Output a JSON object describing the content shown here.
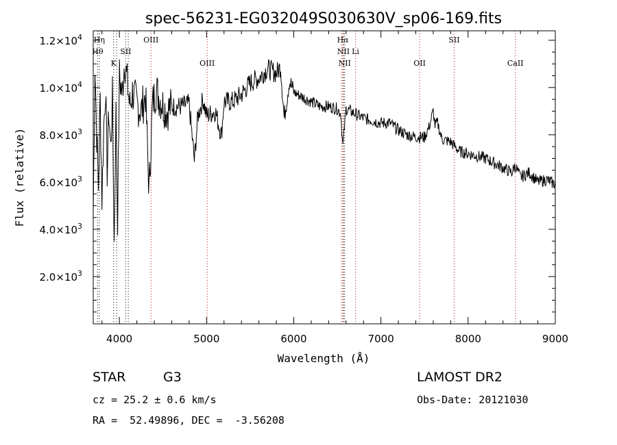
{
  "chart_data": {
    "type": "line",
    "title": "spec-56231-EG032049S030630V_sp06-169.fits",
    "xlabel": "Wavelength (Å)",
    "ylabel": "Flux (relative)",
    "xlim": [
      3700,
      9000
    ],
    "ylim": [
      0,
      12400
    ],
    "grid": false,
    "x_ticks": [
      4000,
      5000,
      6000,
      7000,
      8000,
      9000
    ],
    "x_tick_labels": [
      "4000",
      "5000",
      "6000",
      "7000",
      "8000",
      "9000"
    ],
    "y_ticks": [
      2000,
      4000,
      6000,
      8000,
      10000,
      12000
    ],
    "y_tick_mantissas": [
      "2.0",
      "4.0",
      "6.0",
      "8.0",
      "1.0",
      "1.2"
    ],
    "y_tick_exponents": [
      "3",
      "3",
      "3",
      "3",
      "4",
      "4"
    ],
    "y_tick_times": "×10",
    "series": [
      {
        "x": [
          3700,
          3720,
          3740,
          3760,
          3780,
          3800,
          3820,
          3840,
          3860,
          3880,
          3900,
          3920,
          3940,
          3960,
          3980,
          4000,
          4030,
          4060,
          4090,
          4120,
          4150,
          4200,
          4250,
          4300,
          4340,
          4380,
          4420,
          4480,
          4540,
          4600,
          4700,
          4800,
          4860,
          4900,
          4960,
          5000,
          5100,
          5170,
          5200,
          5300,
          5400,
          5500,
          5600,
          5700,
          5800,
          5850,
          5890,
          5950,
          6000,
          6100,
          6200,
          6300,
          6400,
          6500,
          6540,
          6563,
          6600,
          6700,
          6800,
          6900,
          7000,
          7100,
          7200,
          7300,
          7400,
          7500,
          7550,
          7600,
          7620,
          7650,
          7700,
          7800,
          7900,
          8000,
          8100,
          8200,
          8300,
          8400,
          8500,
          8540,
          8600,
          8700,
          8800,
          8900,
          9000
        ],
        "y": [
          4600,
          11000,
          8000,
          5800,
          9500,
          5300,
          8300,
          10000,
          6500,
          9000,
          7400,
          9600,
          3400,
          8900,
          4500,
          10500,
          9700,
          11200,
          10200,
          9200,
          9800,
          9300,
          9000,
          9700,
          5600,
          9300,
          9900,
          9400,
          9000,
          9200,
          9200,
          9300,
          6900,
          8800,
          9500,
          8800,
          9000,
          8000,
          9400,
          9400,
          9700,
          10200,
          10400,
          10800,
          10600,
          10900,
          8700,
          10300,
          9800,
          9600,
          9400,
          9200,
          9200,
          9100,
          8900,
          7500,
          9100,
          8900,
          8700,
          8600,
          8500,
          8500,
          8200,
          8000,
          7900,
          7900,
          8300,
          9000,
          8400,
          8500,
          7800,
          7700,
          7300,
          7200,
          7100,
          7000,
          6800,
          6600,
          6400,
          6700,
          6200,
          6400,
          6000,
          6100,
          5900
        ]
      }
    ],
    "line_markers": [
      {
        "wl": 3750,
        "label": "Hθ",
        "row": 2,
        "color": "#000000"
      },
      {
        "wl": 3770,
        "label": "Hη",
        "row": 1,
        "color": "#000000"
      },
      {
        "wl": 3934,
        "label": "K",
        "row": 3,
        "color": "#000000"
      },
      {
        "wl": 3968,
        "label": "",
        "row": 0,
        "color": "#000000"
      },
      {
        "wl": 4072,
        "label": "SII",
        "row": 2,
        "color": "#000000"
      },
      {
        "wl": 4102,
        "label": "",
        "row": 0,
        "color": "#000000"
      },
      {
        "wl": 4363,
        "label": "OIII",
        "row": 1,
        "color": "#cc0000"
      },
      {
        "wl": 5007,
        "label": "OIII",
        "row": 3,
        "color": "#cc0000"
      },
      {
        "wl": 6548,
        "label": "",
        "row": 0,
        "color": "#cc0000"
      },
      {
        "wl": 6563,
        "label": "Hα",
        "row": 1,
        "color": "#cc0000"
      },
      {
        "wl": 6570,
        "label": "NII",
        "row": 2,
        "color": "#000000"
      },
      {
        "wl": 6584,
        "label": "NII",
        "row": 3,
        "color": "#000000"
      },
      {
        "wl": 6708,
        "label": "Li",
        "row": 2,
        "color": "#cc0000"
      },
      {
        "wl": 7444,
        "label": "OII",
        "row": 3,
        "color": "#cc0000"
      },
      {
        "wl": 7840,
        "label": "SII",
        "row": 1,
        "color": "#cc0000"
      },
      {
        "wl": 8542,
        "label": "CaII",
        "row": 3,
        "color": "#cc0000"
      }
    ]
  },
  "info": {
    "class_label": "STAR",
    "subclass": "G3",
    "cz": "cz = 25.2 ± 0.6 km/s",
    "coords": "RA =  52.49896, DEC =  -3.56208",
    "survey": "LAMOST DR2",
    "obs_date": "Obs-Date: 20121030"
  }
}
